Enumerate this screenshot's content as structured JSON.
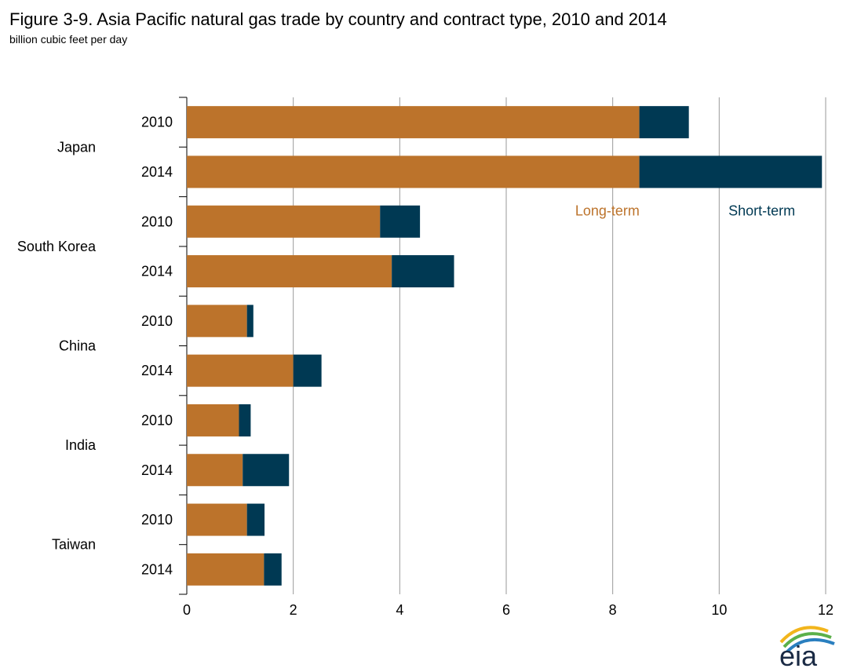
{
  "chart_data": {
    "type": "bar",
    "orientation": "horizontal",
    "stacked": true,
    "title": "Figure 3-9. Asia Pacific natural gas trade by country and contract type, 2010 and 2014",
    "subtitle": "billion cubic feet per day",
    "xlim": [
      0,
      12
    ],
    "xticks": [
      "0",
      "2",
      "4",
      "6",
      "8",
      "10",
      "12"
    ],
    "grid": true,
    "groups": [
      "Japan",
      "South Korea",
      "China",
      "India",
      "Taiwan"
    ],
    "years": [
      "2010",
      "2014"
    ],
    "series": [
      {
        "name": "Long-term",
        "color": "#bc732b",
        "values": [
          [
            8.5,
            8.5
          ],
          [
            3.63,
            3.85
          ],
          [
            1.13,
            2.0
          ],
          [
            0.98,
            1.05
          ],
          [
            1.13,
            1.45
          ]
        ]
      },
      {
        "name": "Short-term",
        "color": "#003953",
        "values": [
          [
            0.93,
            3.43
          ],
          [
            0.75,
            1.17
          ],
          [
            0.12,
            0.53
          ],
          [
            0.22,
            0.87
          ],
          [
            0.33,
            0.33
          ]
        ]
      }
    ],
    "legend": "inline-near-top-bar"
  }
}
